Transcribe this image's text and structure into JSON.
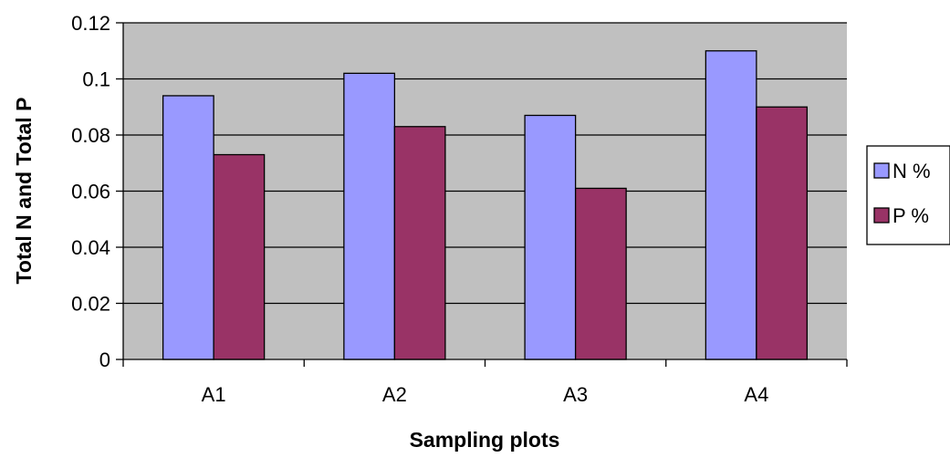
{
  "chart_data": {
    "type": "bar",
    "title": "",
    "xlabel": "Sampling plots",
    "ylabel": "Total N and Total P",
    "categories": [
      "A1",
      "A2",
      "A3",
      "A4"
    ],
    "series": [
      {
        "name": "N %",
        "values": [
          0.094,
          0.102,
          0.087,
          0.11
        ],
        "color": "#9999ff"
      },
      {
        "name": "P %",
        "values": [
          0.073,
          0.083,
          0.061,
          0.09
        ],
        "color": "#993366"
      }
    ],
    "ylim": [
      0,
      0.12
    ],
    "yticks": [
      "0",
      "0.02",
      "0.04",
      "0.06",
      "0.08",
      "0.1",
      "0.12"
    ],
    "grid": true,
    "plot_background": "#c0c0c0",
    "legend_position": "right"
  }
}
